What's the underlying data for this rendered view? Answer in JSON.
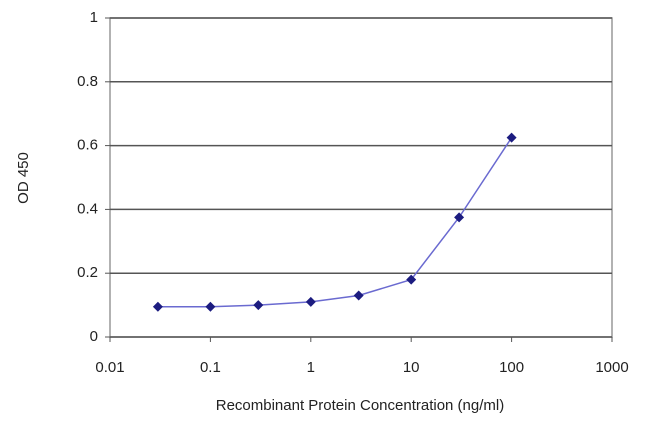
{
  "chart_data": {
    "type": "line",
    "x_label": "Recombinant Protein Concentration (ng/ml)",
    "y_label": "OD 450",
    "x": [
      0.03,
      0.1,
      0.3,
      1,
      3,
      10,
      30,
      100
    ],
    "series": [
      {
        "color": "#1c1c80",
        "line_color": "#6a6ad0",
        "values": [
          0.095,
          0.095,
          0.1,
          0.11,
          0.13,
          0.18,
          0.375,
          0.625
        ]
      }
    ],
    "xlim": [
      0.01,
      1000
    ],
    "xticks": [
      0.01,
      0.1,
      1,
      10,
      100,
      1000
    ],
    "xscale": "log",
    "ylim": [
      0,
      1
    ],
    "yticks": [
      0,
      0.2,
      0.4,
      0.6,
      0.8,
      1
    ],
    "grid": true
  }
}
